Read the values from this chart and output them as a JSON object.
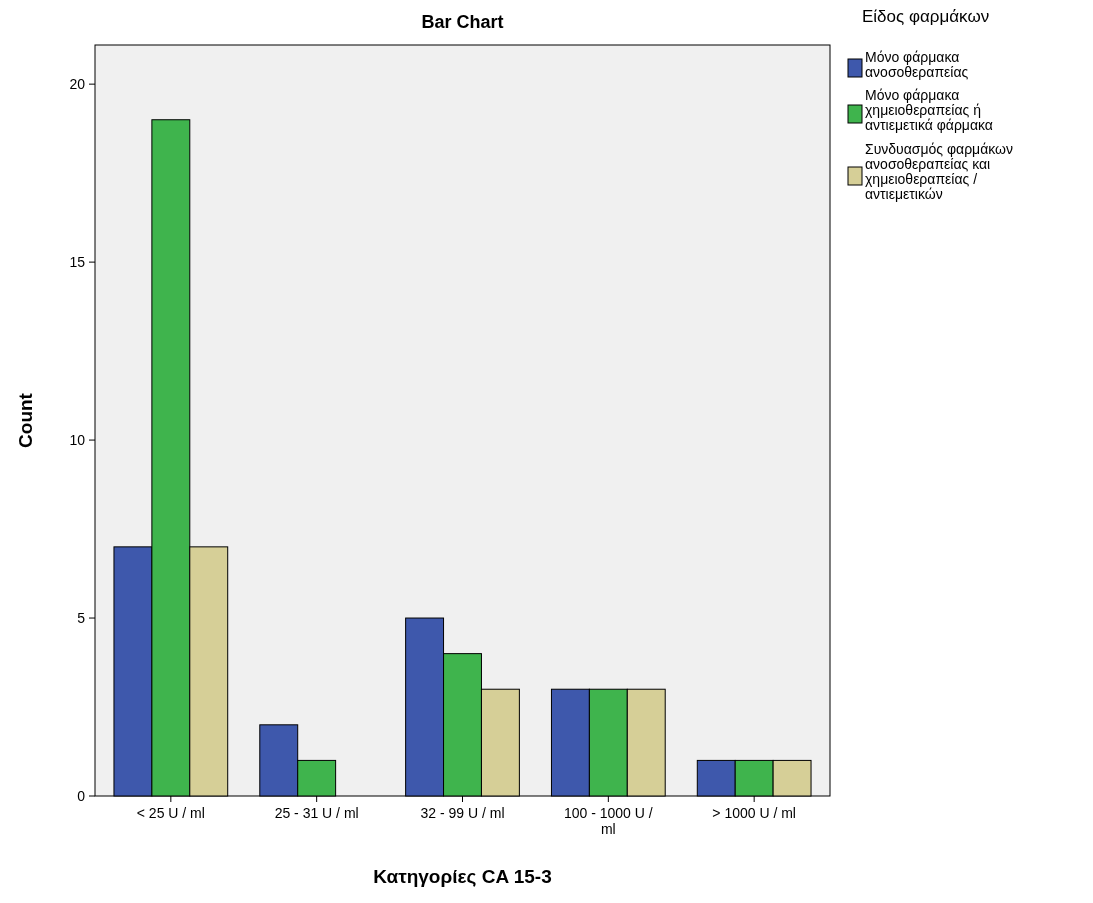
{
  "chart_data": {
    "type": "bar",
    "title": "Bar Chart",
    "xlabel": "Κατηγορίες CA 15-3",
    "ylabel": "Count",
    "legend_title": "Είδος φαρμάκων",
    "categories": [
      "< 25 U / ml",
      "25 - 31 U / ml",
      "32 - 99 U / ml",
      "100 - 1000 U / ml",
      "> 1000 U / ml"
    ],
    "series": [
      {
        "name": "Μόνο φάρμακα ανοσοθεραπείας",
        "color": "#3e58ac",
        "values": [
          7,
          2,
          5,
          3,
          1
        ]
      },
      {
        "name": "Μόνο φάρμακα χημειοθεραπείας ή αντιεμετικά φάρμακα",
        "color": "#3fb44d",
        "values": [
          19,
          1,
          4,
          3,
          1
        ]
      },
      {
        "name": "Συνδυασμός φαρμάκων ανοσοθεραπείας και χημειοθεραπείας / αντιεμετικών",
        "color": "#d6cf97",
        "values": [
          7,
          0,
          3,
          3,
          1
        ]
      }
    ],
    "ylim": [
      0,
      21.1
    ],
    "yticks": [
      0,
      5,
      10,
      15,
      20
    ],
    "grid": false,
    "legend": "right"
  }
}
